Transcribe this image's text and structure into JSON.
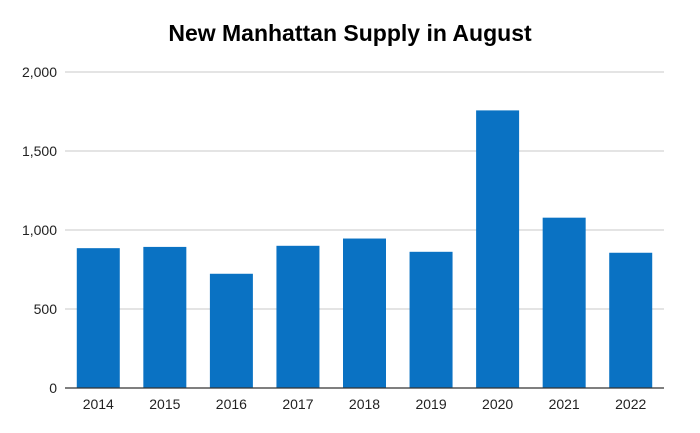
{
  "chart_data": {
    "type": "bar",
    "title": "New Manhattan Supply in August",
    "xlabel": "",
    "ylabel": "",
    "categories": [
      "2014",
      "2015",
      "2016",
      "2017",
      "2018",
      "2019",
      "2020",
      "2021",
      "2022"
    ],
    "values": [
      885,
      893,
      723,
      900,
      946,
      862,
      1757,
      1078,
      856
    ],
    "ylim": [
      0,
      2000
    ],
    "yticks": [
      0,
      500,
      1000,
      1500,
      2000
    ],
    "ytick_labels": [
      "0",
      "500",
      "1,000",
      "1,500",
      "2,000"
    ],
    "grid": true,
    "legend": "none",
    "bar_color": "#0a72c3",
    "grid_color": "#c8c8c8",
    "axis_color": "#333333"
  }
}
